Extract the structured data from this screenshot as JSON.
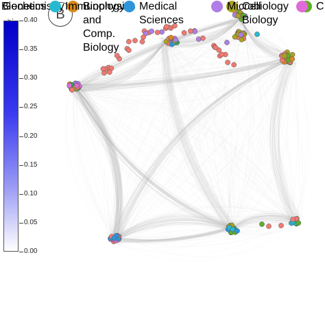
{
  "panel_label": "B",
  "colorbar": {
    "title": "φ coef.",
    "ticks": [
      "0.40",
      "0.35",
      "0.30",
      "0.25",
      "0.20",
      "0.15",
      "0.10",
      "0.05",
      "0.00"
    ]
  },
  "legend_rows": [
    [
      {
        "label": "Biochemistry",
        "color": null
      },
      {
        "label": "Biophysics and Comp. Biology",
        "color": "#d88a1c"
      },
      {
        "label": "Cell Biology",
        "color": "#aaa21e"
      },
      {
        "label": "C",
        "color": "#5fae2a"
      }
    ],
    [
      {
        "label": "Genetics",
        "color": null
      },
      {
        "label": "Immunology",
        "color": "#27b9cf"
      },
      {
        "label": "Medical Sciences",
        "color": "#2e95d9"
      },
      {
        "label": "Microbiology",
        "color": "#b07ee6"
      },
      {
        "label": "",
        "color": "#e06ad8"
      }
    ]
  ],
  "network": {
    "edge_color": "#bdbdbd",
    "node_colors": [
      "#ef7a72",
      "#d88a1c",
      "#aaa21e",
      "#5fae2a",
      "#27b9cf",
      "#2e95d9",
      "#b07ee6",
      "#e06ad8",
      "#35a055"
    ],
    "hubs": [
      "left",
      "top-left-arc",
      "top-right",
      "right-top",
      "bottom-left",
      "bottom-right"
    ]
  }
}
